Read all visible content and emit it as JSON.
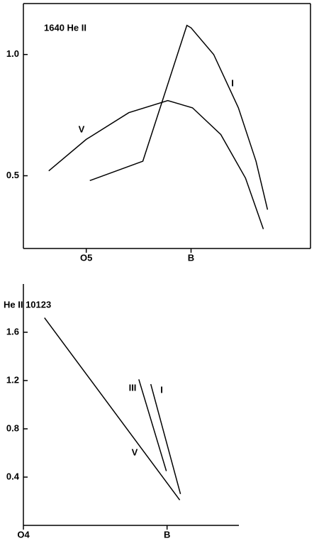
{
  "chart_data": [
    {
      "type": "line",
      "title": "1640 He II",
      "xlim": [
        2,
        15.7
      ],
      "xticks": [
        {
          "value": 5,
          "label": "O5"
        },
        {
          "value": 10,
          "label": "B"
        }
      ],
      "ylim": [
        0.2,
        1.21
      ],
      "yticks": [
        0.5,
        {
          "value": 1,
          "label": "1.0"
        }
      ],
      "series": [
        {
          "name": "V",
          "color": "#000000",
          "x": [
            3.21,
            5,
            7.03,
            8.89,
            10.07,
            11.42,
            12.6,
            13.45
          ],
          "values": [
            0.52,
            0.65,
            0.76,
            0.81,
            0.78,
            0.67,
            0.49,
            0.28
          ]
        },
        {
          "name": "I",
          "color": "#000000",
          "x": [
            5.17,
            7.7,
            9.8,
            10,
            11.08,
            12.26,
            13.1,
            13.65
          ],
          "values": [
            0.48,
            0.56,
            1.12,
            1.11,
            1.0,
            0.78,
            0.56,
            0.36
          ]
        }
      ]
    },
    {
      "type": "line",
      "title": "He II 10123",
      "xlim": [
        4,
        13
      ],
      "xticks": [
        {
          "value": 4,
          "label": "O4"
        },
        {
          "value": 10,
          "label": "B"
        }
      ],
      "ylim": [
        0,
        2
      ],
      "yticks": [
        0.4,
        0.8,
        1.2,
        1.6
      ],
      "series": [
        {
          "name": "V",
          "color": "#000000",
          "x": [
            4.88,
            10.53
          ],
          "values": [
            1.72,
            0.21
          ]
        },
        {
          "name": "III",
          "color": "#000000",
          "x": [
            8.82,
            9.97
          ],
          "values": [
            1.21,
            0.45
          ]
        },
        {
          "name": "I",
          "color": "#000000",
          "x": [
            9.32,
            10.56
          ],
          "values": [
            1.17,
            0.26
          ]
        }
      ]
    }
  ]
}
